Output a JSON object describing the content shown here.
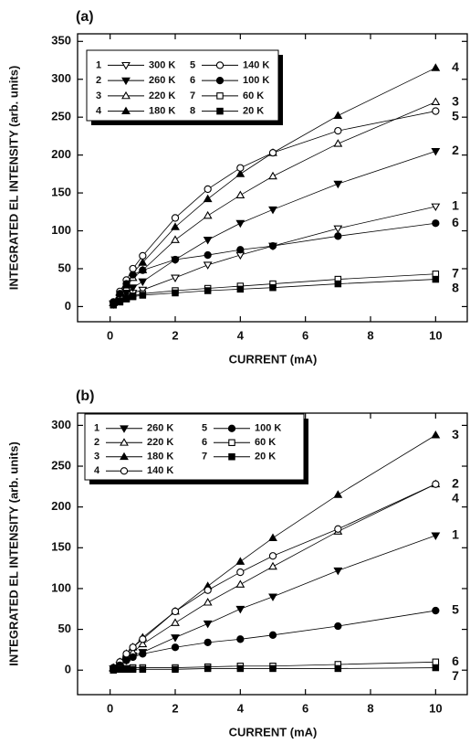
{
  "chart_data": [
    {
      "type": "line",
      "panel_label": "(a)",
      "x_label": "CURRENT (mA)",
      "y_label": "INTEGRATED EL INTENSITY (arb. units)",
      "x": [
        0.1,
        0.3,
        0.5,
        0.7,
        1,
        2,
        3,
        4,
        5,
        7,
        10
      ],
      "xlim": [
        -1,
        11
      ],
      "xticks": [
        0,
        2,
        4,
        6,
        8,
        10
      ],
      "ylim": [
        -20,
        360
      ],
      "yticks": [
        0,
        50,
        100,
        150,
        200,
        250,
        300,
        350
      ],
      "series": [
        {
          "label": "1",
          "name": "300 K",
          "marker": "triangle-down-open",
          "color": "#000000",
          "values": [
            3,
            8,
            13,
            18,
            22,
            38,
            55,
            68,
            80,
            103,
            132
          ]
        },
        {
          "label": "2",
          "name": "260 K",
          "marker": "triangle-down-filled",
          "color": "#000000",
          "values": [
            4,
            12,
            18,
            25,
            33,
            62,
            88,
            110,
            128,
            162,
            205
          ]
        },
        {
          "label": "3",
          "name": "220 K",
          "marker": "triangle-up-open",
          "color": "#000000",
          "values": [
            5,
            15,
            25,
            38,
            48,
            88,
            120,
            147,
            172,
            215,
            270
          ]
        },
        {
          "label": "4",
          "name": "180 K",
          "marker": "triangle-up-filled",
          "color": "#000000",
          "values": [
            5,
            18,
            28,
            45,
            58,
            105,
            142,
            175,
            203,
            252,
            315
          ]
        },
        {
          "label": "5",
          "name": "140 K",
          "marker": "circle-open",
          "color": "#000000",
          "values": [
            6,
            20,
            35,
            50,
            67,
            117,
            155,
            183,
            203,
            232,
            258
          ]
        },
        {
          "label": "6",
          "name": "100 K",
          "marker": "circle-filled",
          "color": "#000000",
          "values": [
            5,
            17,
            30,
            42,
            48,
            62,
            68,
            75,
            80,
            93,
            110
          ]
        },
        {
          "label": "7",
          "name": "60 K",
          "marker": "square-open",
          "color": "#000000",
          "values": [
            3,
            7,
            11,
            14,
            17,
            21,
            24,
            27,
            30,
            36,
            43
          ]
        },
        {
          "label": "8",
          "name": "20 K",
          "marker": "square-filled",
          "color": "#000000",
          "values": [
            2,
            6,
            10,
            13,
            15,
            18,
            21,
            23,
            25,
            30,
            36
          ]
        }
      ]
    },
    {
      "type": "line",
      "panel_label": "(b)",
      "x_label": "CURRENT (mA)",
      "y_label": "INTEGRATED EL INTENSITY (arb. units)",
      "x": [
        0.1,
        0.3,
        0.5,
        0.7,
        1,
        2,
        3,
        4,
        5,
        7,
        10
      ],
      "xlim": [
        -1,
        11
      ],
      "xticks": [
        0,
        2,
        4,
        6,
        8,
        10
      ],
      "ylim": [
        -30,
        315
      ],
      "yticks": [
        0,
        50,
        100,
        150,
        200,
        250,
        300
      ],
      "series": [
        {
          "label": "1",
          "name": "260 K",
          "marker": "triangle-down-filled",
          "color": "#000000",
          "values": [
            2,
            6,
            12,
            18,
            22,
            40,
            57,
            75,
            90,
            122,
            165
          ]
        },
        {
          "label": "2",
          "name": "220 K",
          "marker": "triangle-up-open",
          "color": "#000000",
          "values": [
            2,
            8,
            15,
            22,
            32,
            58,
            83,
            105,
            127,
            170,
            228
          ]
        },
        {
          "label": "3",
          "name": "180 K",
          "marker": "triangle-up-filled",
          "color": "#000000",
          "values": [
            3,
            10,
            20,
            28,
            40,
            72,
            103,
            133,
            162,
            215,
            288
          ]
        },
        {
          "label": "4",
          "name": "140 K",
          "marker": "circle-open",
          "color": "#000000",
          "values": [
            3,
            10,
            20,
            28,
            38,
            72,
            98,
            120,
            140,
            173,
            228
          ]
        },
        {
          "label": "5",
          "name": "100 K",
          "marker": "circle-filled",
          "color": "#000000",
          "values": [
            2,
            6,
            12,
            16,
            20,
            28,
            34,
            38,
            43,
            54,
            73
          ]
        },
        {
          "label": "6",
          "name": "60 K",
          "marker": "square-open",
          "color": "#000000",
          "values": [
            1,
            2,
            2,
            3,
            3,
            3,
            4,
            5,
            5,
            7,
            10
          ]
        },
        {
          "label": "7",
          "name": "20 K",
          "marker": "square-filled",
          "color": "#000000",
          "values": [
            0,
            1,
            1,
            1,
            1,
            1,
            2,
            2,
            2,
            2,
            3
          ]
        }
      ]
    }
  ]
}
